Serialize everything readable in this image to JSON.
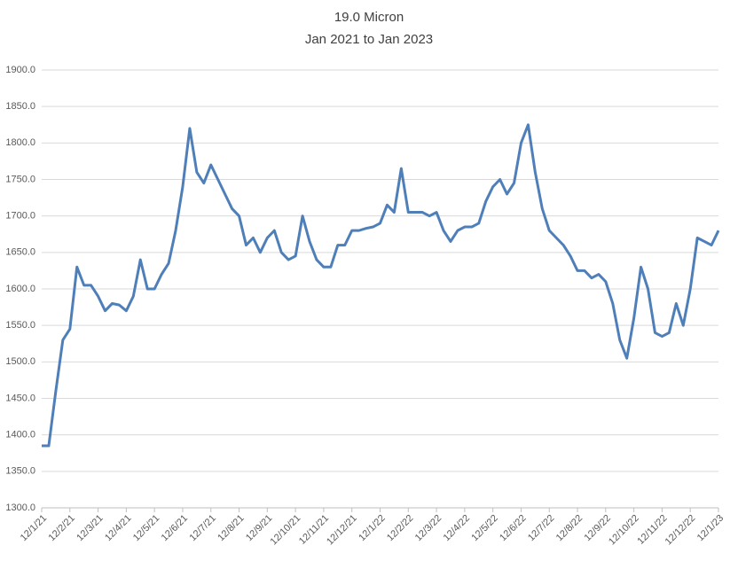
{
  "chart_data": {
    "type": "line",
    "title": "19.0 Micron",
    "subtitle": "Jan 2021 to Jan 2023",
    "categories": [
      "12/1/21",
      null,
      null,
      null,
      "12/2/21",
      null,
      null,
      null,
      "12/3/21",
      null,
      null,
      null,
      "12/4/21",
      null,
      null,
      null,
      "12/5/21",
      null,
      null,
      null,
      "12/6/21",
      null,
      null,
      null,
      "12/7/21",
      null,
      null,
      null,
      "12/8/21",
      null,
      null,
      null,
      "12/9/21",
      null,
      null,
      null,
      "12/10/21",
      null,
      null,
      null,
      "12/11/21",
      null,
      null,
      null,
      "12/12/21",
      null,
      null,
      null,
      "12/1/22",
      null,
      null,
      null,
      "12/2/22",
      null,
      null,
      null,
      "12/3/22",
      null,
      null,
      null,
      "12/4/22",
      null,
      null,
      null,
      "12/5/22",
      null,
      null,
      null,
      "12/6/22",
      null,
      null,
      null,
      "12/7/22",
      null,
      null,
      null,
      "12/8/22",
      null,
      null,
      null,
      "12/9/22",
      null,
      null,
      null,
      "12/10/22",
      null,
      null,
      null,
      "12/11/22",
      null,
      null,
      null,
      "12/12/22",
      null,
      null,
      null,
      "12/1/23"
    ],
    "series": [
      {
        "name": "19.0 Micron",
        "color": "#4f7fb8",
        "values": [
          1385,
          1385,
          1460,
          1530,
          1545,
          1630,
          1605,
          1605,
          1590,
          1570,
          1580,
          1578,
          1570,
          1590,
          1640,
          1600,
          1600,
          1620,
          1635,
          1680,
          1740,
          1820,
          1760,
          1745,
          1770,
          1750,
          1730,
          1710,
          1700,
          1660,
          1670,
          1650,
          1670,
          1680,
          1650,
          1640,
          1645,
          1700,
          1665,
          1640,
          1630,
          1630,
          1660,
          1660,
          1680,
          1680,
          1683,
          1685,
          1690,
          1715,
          1705,
          1765,
          1705,
          1705,
          1705,
          1700,
          1705,
          1680,
          1665,
          1680,
          1685,
          1685,
          1690,
          1720,
          1740,
          1750,
          1730,
          1745,
          1800,
          1825,
          1760,
          1710,
          1680,
          1670,
          1660,
          1645,
          1625,
          1625,
          1615,
          1620,
          1610,
          1580,
          1530,
          1505,
          1560,
          1630,
          1600,
          1540,
          1535,
          1540,
          1580,
          1550,
          1600,
          1670,
          1665,
          1660,
          1680
        ]
      }
    ],
    "ylim": [
      1300,
      1900
    ],
    "yticks": [
      {
        "value": 1300,
        "label": "1300.0"
      },
      {
        "value": 1350,
        "label": "1350.0"
      },
      {
        "value": 1400,
        "label": "1400.0"
      },
      {
        "value": 1450,
        "label": "1450.0"
      },
      {
        "value": 1500,
        "label": "1500.0"
      },
      {
        "value": 1550,
        "label": "1550.0"
      },
      {
        "value": 1600,
        "label": "1600.0"
      },
      {
        "value": 1650,
        "label": "1650.0"
      },
      {
        "value": 1700,
        "label": "1700.0"
      },
      {
        "value": 1750,
        "label": "1750.0"
      },
      {
        "value": 1800,
        "label": "1800.0"
      },
      {
        "value": 1850,
        "label": "1850.0"
      },
      {
        "value": 1900,
        "label": "1900.0"
      }
    ],
    "grid": true
  }
}
